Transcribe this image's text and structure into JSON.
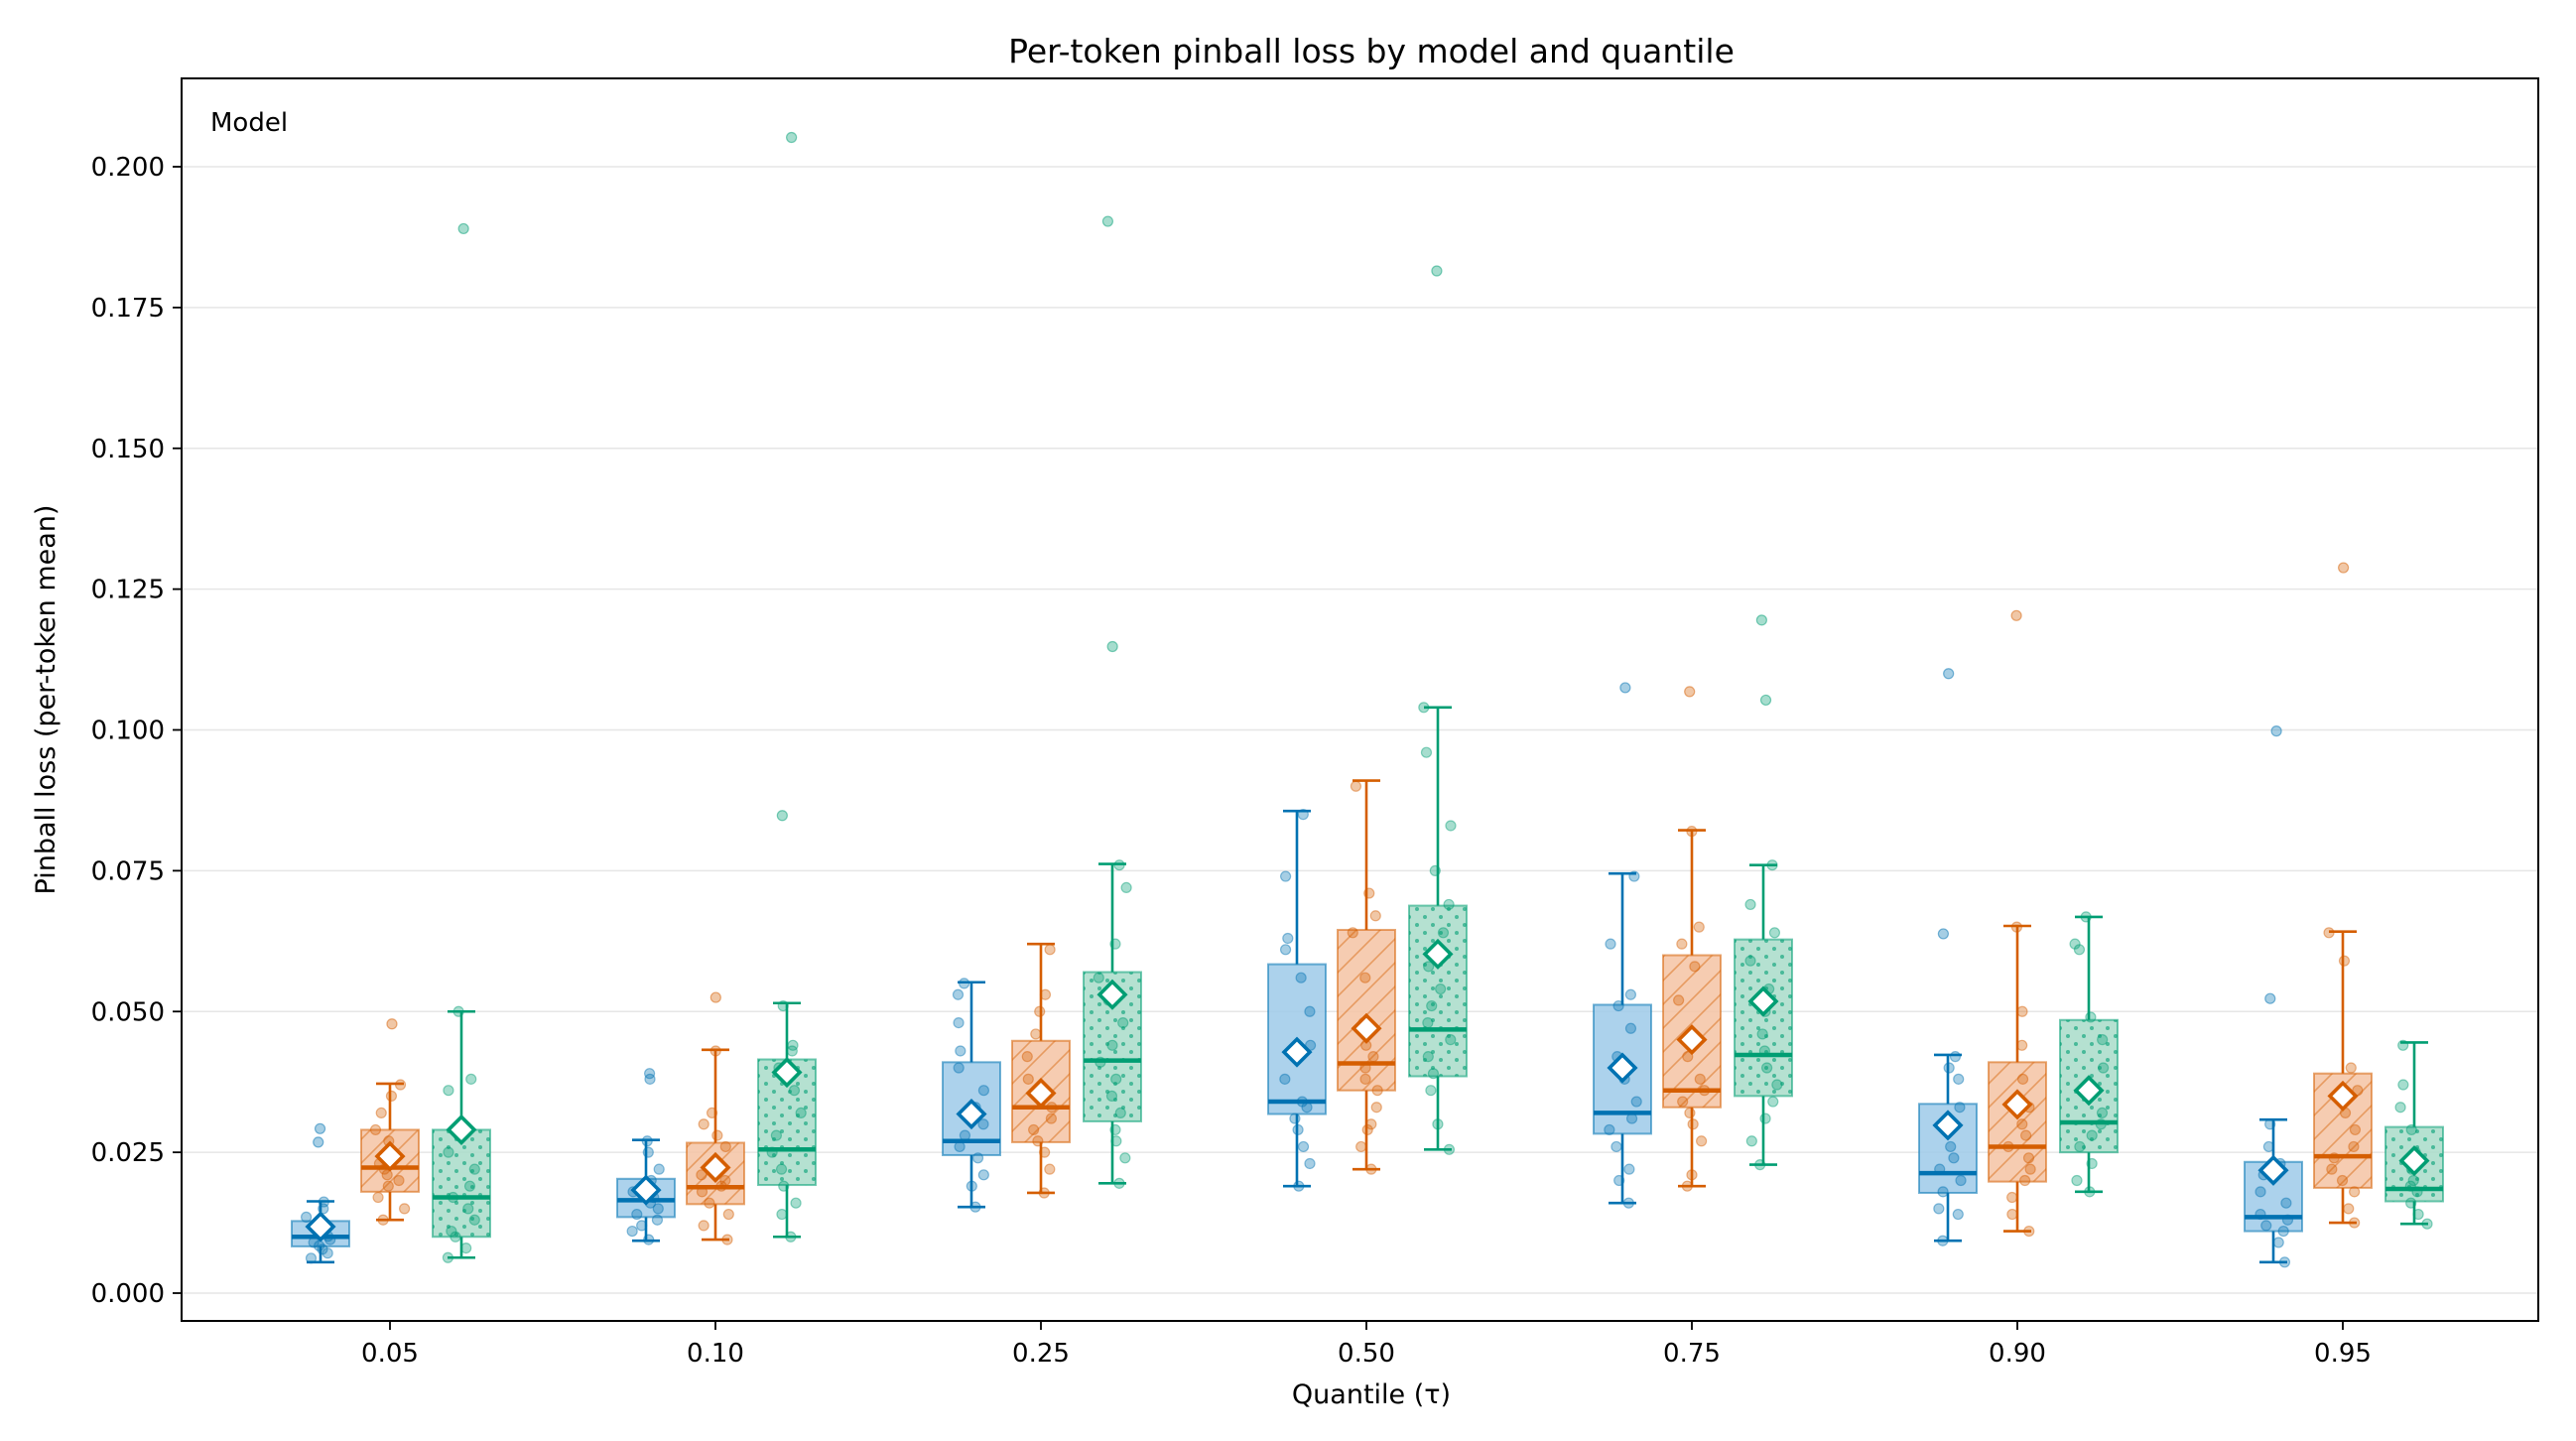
{
  "chart_data": {
    "type": "box",
    "title": "Per-token pinball loss by model and quantile",
    "xlabel": "Quantile (τ)",
    "ylabel": "Pinball loss (per-token mean)",
    "categories": [
      "0.05",
      "0.10",
      "0.25",
      "0.50",
      "0.75",
      "0.90",
      "0.95"
    ],
    "ylim": [
      -0.005,
      0.215
    ],
    "yticks": [
      "0.000",
      "0.025",
      "0.050",
      "0.075",
      "0.100",
      "0.125",
      "0.150",
      "0.175",
      "0.200"
    ],
    "grid": "horizontal",
    "legend": {
      "title": "Model",
      "placement": "top-left"
    },
    "series": [
      {
        "color": "#0072B2",
        "fill": "#9ecae9",
        "pattern": "none",
        "boxes": [
          {
            "whisker_low": 0.0055,
            "q1": 0.0083,
            "median": 0.01,
            "q3": 0.0128,
            "whisker_high": 0.0163,
            "mean": 0.0118,
            "points": [
              0.0062,
              0.0071,
              0.0078,
              0.0084,
              0.009,
              0.0095,
              0.0101,
              0.0107,
              0.0113,
              0.0122,
              0.0135,
              0.015,
              0.0162
            ],
            "outliers": [
              0.0292,
              0.0268
            ]
          },
          {
            "whisker_low": 0.0093,
            "q1": 0.0135,
            "median": 0.0165,
            "q3": 0.0203,
            "whisker_high": 0.0272,
            "mean": 0.0183,
            "points": [
              0.0095,
              0.011,
              0.012,
              0.013,
              0.014,
              0.015,
              0.016,
              0.017,
              0.018,
              0.02,
              0.022,
              0.025,
              0.027,
              0.038,
              0.039
            ]
          },
          {
            "whisker_low": 0.0153,
            "q1": 0.0245,
            "median": 0.027,
            "q3": 0.041,
            "whisker_high": 0.0552,
            "mean": 0.0318,
            "points": [
              0.0153,
              0.019,
              0.021,
              0.024,
              0.026,
              0.028,
              0.03,
              0.033,
              0.036,
              0.04,
              0.043,
              0.048,
              0.053,
              0.055
            ]
          },
          {
            "whisker_low": 0.019,
            "q1": 0.0318,
            "median": 0.034,
            "q3": 0.0584,
            "whisker_high": 0.0856,
            "mean": 0.0428,
            "points": [
              0.019,
              0.023,
              0.026,
              0.029,
              0.031,
              0.033,
              0.034,
              0.038,
              0.044,
              0.05,
              0.056,
              0.061,
              0.063,
              0.074,
              0.085
            ]
          },
          {
            "whisker_low": 0.016,
            "q1": 0.0283,
            "median": 0.032,
            "q3": 0.0512,
            "whisker_high": 0.0745,
            "mean": 0.04,
            "points": [
              0.016,
              0.02,
              0.022,
              0.026,
              0.029,
              0.031,
              0.034,
              0.038,
              0.042,
              0.047,
              0.051,
              0.053,
              0.062,
              0.074
            ],
            "outliers": [
              0.1075
            ]
          },
          {
            "whisker_low": 0.0093,
            "q1": 0.0178,
            "median": 0.0213,
            "q3": 0.0336,
            "whisker_high": 0.0423,
            "mean": 0.0298,
            "points": [
              0.0093,
              0.014,
              0.015,
              0.018,
              0.02,
              0.022,
              0.024,
              0.026,
              0.029,
              0.033,
              0.038,
              0.04,
              0.042
            ],
            "outliers": [
              0.0638,
              0.11
            ]
          },
          {
            "whisker_low": 0.0055,
            "q1": 0.011,
            "median": 0.0135,
            "q3": 0.0233,
            "whisker_high": 0.0308,
            "mean": 0.0218,
            "points": [
              0.0055,
              0.009,
              0.011,
              0.012,
              0.013,
              0.014,
              0.016,
              0.018,
              0.021,
              0.023,
              0.026,
              0.03
            ],
            "outliers": [
              0.0523,
              0.0998
            ]
          }
        ]
      },
      {
        "color": "#D55E00",
        "fill": "#f5c3a3",
        "pattern": "hatch",
        "boxes": [
          {
            "whisker_low": 0.013,
            "q1": 0.018,
            "median": 0.0223,
            "q3": 0.029,
            "whisker_high": 0.0372,
            "mean": 0.0243,
            "points": [
              0.013,
              0.015,
              0.017,
              0.019,
              0.02,
              0.021,
              0.022,
              0.023,
              0.025,
              0.027,
              0.029,
              0.032,
              0.035,
              0.037
            ],
            "outliers": [
              0.0478
            ]
          },
          {
            "whisker_low": 0.0095,
            "q1": 0.0158,
            "median": 0.0188,
            "q3": 0.0267,
            "whisker_high": 0.0432,
            "mean": 0.0223,
            "points": [
              0.0095,
              0.012,
              0.014,
              0.016,
              0.018,
              0.019,
              0.02,
              0.021,
              0.023,
              0.026,
              0.028,
              0.03,
              0.032,
              0.043
            ],
            "outliers": [
              0.0525
            ]
          },
          {
            "whisker_low": 0.0178,
            "q1": 0.0268,
            "median": 0.033,
            "q3": 0.0448,
            "whisker_high": 0.062,
            "mean": 0.0355,
            "points": [
              0.0178,
              0.022,
              0.025,
              0.027,
              0.029,
              0.031,
              0.033,
              0.035,
              0.038,
              0.042,
              0.046,
              0.05,
              0.053,
              0.061
            ]
          },
          {
            "whisker_low": 0.022,
            "q1": 0.036,
            "median": 0.0408,
            "q3": 0.0645,
            "whisker_high": 0.091,
            "mean": 0.047,
            "points": [
              0.022,
              0.026,
              0.029,
              0.03,
              0.033,
              0.036,
              0.038,
              0.04,
              0.042,
              0.044,
              0.048,
              0.056,
              0.064,
              0.067,
              0.071,
              0.09
            ]
          },
          {
            "whisker_low": 0.019,
            "q1": 0.033,
            "median": 0.036,
            "q3": 0.06,
            "whisker_high": 0.0822,
            "mean": 0.045,
            "points": [
              0.019,
              0.021,
              0.027,
              0.03,
              0.032,
              0.034,
              0.036,
              0.038,
              0.042,
              0.046,
              0.052,
              0.058,
              0.062,
              0.065,
              0.082
            ],
            "outliers": [
              0.1068
            ]
          },
          {
            "whisker_low": 0.011,
            "q1": 0.0198,
            "median": 0.026,
            "q3": 0.041,
            "whisker_high": 0.0652,
            "mean": 0.0335,
            "points": [
              0.011,
              0.014,
              0.017,
              0.02,
              0.022,
              0.024,
              0.026,
              0.028,
              0.03,
              0.033,
              0.038,
              0.044,
              0.05,
              0.065
            ],
            "outliers": [
              0.1203
            ]
          },
          {
            "whisker_low": 0.0125,
            "q1": 0.0187,
            "median": 0.0243,
            "q3": 0.039,
            "whisker_high": 0.0642,
            "mean": 0.035,
            "points": [
              0.0125,
              0.015,
              0.018,
              0.02,
              0.022,
              0.024,
              0.026,
              0.029,
              0.032,
              0.036,
              0.04,
              0.059,
              0.064
            ],
            "outliers": [
              0.1288
            ]
          }
        ]
      },
      {
        "color": "#009E73",
        "fill": "#a8dcc9",
        "pattern": "dots",
        "boxes": [
          {
            "whisker_low": 0.0063,
            "q1": 0.01,
            "median": 0.017,
            "q3": 0.029,
            "whisker_high": 0.05,
            "mean": 0.029,
            "points": [
              0.0063,
              0.008,
              0.01,
              0.011,
              0.013,
              0.015,
              0.017,
              0.019,
              0.022,
              0.025,
              0.028,
              0.036,
              0.038,
              0.05
            ],
            "outliers": [
              0.189
            ]
          },
          {
            "whisker_low": 0.01,
            "q1": 0.0192,
            "median": 0.0255,
            "q3": 0.0415,
            "whisker_high": 0.0515,
            "mean": 0.0392,
            "points": [
              0.01,
              0.014,
              0.016,
              0.019,
              0.022,
              0.025,
              0.028,
              0.032,
              0.036,
              0.04,
              0.043,
              0.044,
              0.051
            ],
            "outliers": [
              0.0848,
              0.2052
            ]
          },
          {
            "whisker_low": 0.0195,
            "q1": 0.0305,
            "median": 0.0413,
            "q3": 0.057,
            "whisker_high": 0.0762,
            "mean": 0.053,
            "points": [
              0.0195,
              0.024,
              0.027,
              0.029,
              0.032,
              0.035,
              0.038,
              0.041,
              0.044,
              0.048,
              0.052,
              0.056,
              0.062,
              0.072,
              0.076
            ],
            "outliers": [
              0.1148,
              0.1903
            ]
          },
          {
            "whisker_low": 0.0255,
            "q1": 0.0385,
            "median": 0.0468,
            "q3": 0.0688,
            "whisker_high": 0.104,
            "mean": 0.0602,
            "points": [
              0.0255,
              0.03,
              0.036,
              0.039,
              0.042,
              0.045,
              0.048,
              0.051,
              0.054,
              0.058,
              0.064,
              0.069,
              0.075,
              0.083,
              0.096,
              0.104
            ],
            "outliers": [
              0.1815
            ]
          },
          {
            "whisker_low": 0.0228,
            "q1": 0.035,
            "median": 0.0423,
            "q3": 0.0628,
            "whisker_high": 0.076,
            "mean": 0.0518,
            "points": [
              0.0228,
              0.027,
              0.031,
              0.034,
              0.037,
              0.04,
              0.043,
              0.046,
              0.05,
              0.054,
              0.059,
              0.064,
              0.069,
              0.076
            ],
            "outliers": [
              0.1053,
              0.1195
            ]
          },
          {
            "whisker_low": 0.018,
            "q1": 0.025,
            "median": 0.0303,
            "q3": 0.0485,
            "whisker_high": 0.0668,
            "mean": 0.036,
            "points": [
              0.018,
              0.02,
              0.023,
              0.026,
              0.028,
              0.03,
              0.032,
              0.035,
              0.04,
              0.045,
              0.049,
              0.061,
              0.062,
              0.0668
            ]
          },
          {
            "whisker_low": 0.0123,
            "q1": 0.0163,
            "median": 0.0185,
            "q3": 0.0295,
            "whisker_high": 0.0445,
            "mean": 0.0235,
            "points": [
              0.0123,
              0.014,
              0.016,
              0.018,
              0.019,
              0.02,
              0.022,
              0.025,
              0.029,
              0.033,
              0.037,
              0.044
            ]
          }
        ]
      }
    ]
  }
}
